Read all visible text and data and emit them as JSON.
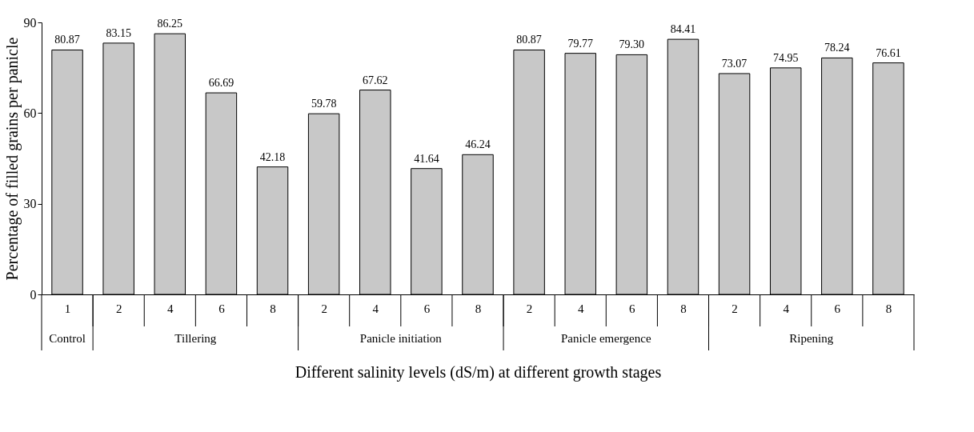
{
  "chart_data": {
    "type": "bar",
    "categories": [
      "1",
      "2",
      "4",
      "6",
      "8",
      "2",
      "4",
      "6",
      "8",
      "2",
      "4",
      "6",
      "8",
      "2",
      "4",
      "6",
      "8"
    ],
    "values": [
      80.87,
      83.15,
      86.25,
      66.69,
      42.18,
      59.78,
      67.62,
      41.64,
      46.24,
      80.87,
      79.77,
      79.3,
      84.41,
      73.07,
      74.95,
      78.24,
      76.61
    ],
    "value_labels": [
      "80.87",
      "83.15",
      "86.25",
      "66.69",
      "42.18",
      "59.78",
      "67.62",
      "41.64",
      "46.24",
      "80.87",
      "79.77",
      "79.30",
      "84.41",
      "73.07",
      "74.95",
      "78.24",
      "76.61"
    ],
    "color": "#c8c8c8",
    "xlabel": "Different salinity levels (dS/m) at different growth stages",
    "ylabel": "Percentage of filled grains per panicle",
    "ylim": [
      0,
      90
    ],
    "yticks": [
      0,
      30,
      60,
      90
    ],
    "grid": false,
    "annotations": [
      "Control",
      "Tillering",
      "Panicle initiation",
      "Panicle emergence",
      "Ripening"
    ]
  }
}
